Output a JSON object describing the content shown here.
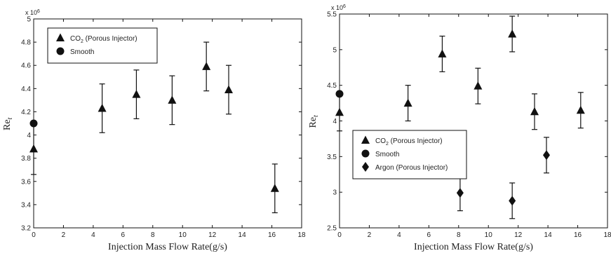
{
  "chart_data": [
    {
      "type": "scatter",
      "xlabel": "Injection Mass Flow Rate(g/s)",
      "ylabel": "Re",
      "ylabel_sub": "t",
      "scale_note": "x 10",
      "scale_exp": "6",
      "xlim": [
        0,
        18
      ],
      "ylim": [
        3.2,
        5.0
      ],
      "xticks": [
        "0",
        "2",
        "4",
        "6",
        "8",
        "10",
        "12",
        "14",
        "16",
        "18"
      ],
      "yticks": [
        "3.2",
        "3.4",
        "3.6",
        "3.8",
        "4",
        "4.2",
        "4.4",
        "4.6",
        "4.8",
        "5"
      ],
      "legend_position": "top-left",
      "series": [
        {
          "name": "CO2 (Porous Injector)",
          "name_main": "CO",
          "name_sub": "2",
          "name_rest": " (Porous Injector)",
          "marker": "triangle",
          "points": [
            {
              "x": 0.0,
              "y": 3.88,
              "err": 0.22
            },
            {
              "x": 4.6,
              "y": 4.23,
              "err": 0.21
            },
            {
              "x": 6.9,
              "y": 4.35,
              "err": 0.21
            },
            {
              "x": 9.3,
              "y": 4.3,
              "err": 0.21
            },
            {
              "x": 11.6,
              "y": 4.59,
              "err": 0.21
            },
            {
              "x": 13.1,
              "y": 4.39,
              "err": 0.21
            },
            {
              "x": 16.2,
              "y": 3.54,
              "err": 0.21
            }
          ]
        },
        {
          "name": "Smooth",
          "marker": "circle",
          "points": [
            {
              "x": 0.0,
              "y": 4.1,
              "err": 0
            }
          ]
        }
      ]
    },
    {
      "type": "scatter",
      "xlabel": "Injection Mass Flow Rate(g/s)",
      "ylabel": "Re",
      "ylabel_sub": "t",
      "scale_note": "x 10",
      "scale_exp": "6",
      "xlim": [
        0,
        18
      ],
      "ylim": [
        2.5,
        5.5
      ],
      "xticks": [
        "0",
        "2",
        "4",
        "6",
        "8",
        "10",
        "12",
        "14",
        "16",
        "18"
      ],
      "yticks": [
        "2.5",
        "3",
        "3.5",
        "4",
        "4.5",
        "5",
        "5.5"
      ],
      "legend_position": "lower-left",
      "series": [
        {
          "name": "CO2 (Porous Injector)",
          "name_main": "CO",
          "name_sub": "2",
          "name_rest": " (Porous Injector)",
          "marker": "triangle",
          "points": [
            {
              "x": 0.0,
              "y": 4.12,
              "err": 0.26
            },
            {
              "x": 4.6,
              "y": 4.25,
              "err": 0.25
            },
            {
              "x": 6.9,
              "y": 4.94,
              "err": 0.25
            },
            {
              "x": 9.3,
              "y": 4.49,
              "err": 0.25
            },
            {
              "x": 11.6,
              "y": 5.22,
              "err": 0.25
            },
            {
              "x": 13.1,
              "y": 4.13,
              "err": 0.25
            },
            {
              "x": 16.2,
              "y": 4.15,
              "err": 0.25
            }
          ]
        },
        {
          "name": "Smooth",
          "marker": "circle",
          "points": [
            {
              "x": 0.0,
              "y": 4.38,
              "err": 0
            }
          ]
        },
        {
          "name": "Argon (Porous Injector)",
          "marker": "diamond",
          "points": [
            {
              "x": 8.1,
              "y": 2.99,
              "err": 0.25
            },
            {
              "x": 11.6,
              "y": 2.88,
              "err": 0.25
            },
            {
              "x": 13.9,
              "y": 3.52,
              "err": 0.25
            }
          ]
        }
      ]
    }
  ]
}
